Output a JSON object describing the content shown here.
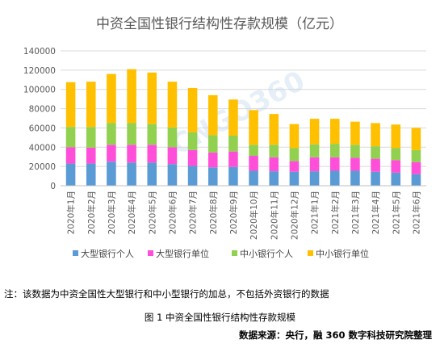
{
  "chart_data": {
    "type": "bar",
    "stacked": true,
    "title": "中资全国性银行结构性存款规模（亿元）",
    "categories": [
      "2020年1月",
      "2020年2月",
      "2020年3月",
      "2020年4月",
      "2020年5月",
      "2020年6月",
      "2020年7月",
      "2020年8月",
      "2020年9月",
      "2020年10月",
      "2020年11月",
      "2020年12月",
      "2021年1月",
      "2021年2月",
      "2021年3月",
      "2021年4月",
      "2021年5月",
      "2021年6月"
    ],
    "series": [
      {
        "name": "大型银行个人",
        "color": "#5b9bd5",
        "values": [
          23000,
          23000,
          25000,
          24000,
          24000,
          22500,
          20500,
          19000,
          19500,
          15500,
          15000,
          14500,
          15000,
          15500,
          15500,
          14500,
          13500,
          12000
        ]
      },
      {
        "name": "大型银行单位",
        "color": "#ff4fd8",
        "values": [
          17000,
          16500,
          17500,
          18500,
          18500,
          17500,
          16500,
          15500,
          16000,
          15500,
          14500,
          11000,
          14500,
          14000,
          13500,
          13500,
          13000,
          12500
        ]
      },
      {
        "name": "中小银行个人",
        "color": "#92d050",
        "values": [
          21000,
          21500,
          22500,
          22500,
          21500,
          20500,
          18500,
          18000,
          16500,
          11500,
          13000,
          13500,
          13500,
          14000,
          13500,
          13000,
          12500,
          12500
        ]
      },
      {
        "name": "中小银行单位",
        "color": "#ffc000",
        "values": [
          46500,
          47000,
          51000,
          56000,
          53500,
          47500,
          46000,
          41500,
          37500,
          36000,
          32000,
          25000,
          26500,
          26000,
          24000,
          24000,
          24500,
          23000
        ]
      }
    ],
    "ylim": [
      0,
      140000
    ],
    "yticks": [
      0,
      20000,
      40000,
      60000,
      80000,
      100000,
      120000,
      140000
    ],
    "grid": true,
    "legend": "bottom"
  },
  "watermark_text": "CNGO360",
  "note": "注：该数据为中资全国性大型银行和中小型银行的加总，不包括外资银行的数据",
  "caption": "图 1  中资全国性银行结构性存款规模",
  "source": "数据来源：央行，融 360 数字科技研究院整理"
}
